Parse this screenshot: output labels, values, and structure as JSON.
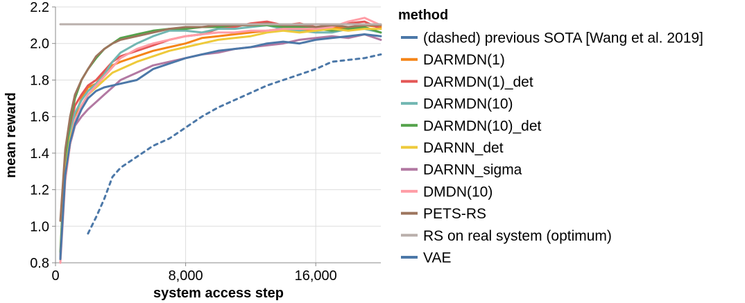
{
  "chart_data": {
    "type": "line",
    "xlabel": "system access step",
    "ylabel": "mean reward",
    "xlim": [
      0,
      20000
    ],
    "ylim": [
      0.8,
      2.2
    ],
    "xticks": [
      0,
      8000,
      16000
    ],
    "xtick_labels": [
      "0",
      "8,000",
      "16,000"
    ],
    "yticks": [
      0.8,
      1.0,
      1.2,
      1.4,
      1.6,
      1.8,
      2.0,
      2.2
    ],
    "ytick_labels": [
      "0.8",
      "1.0",
      "1.2",
      "1.4",
      "1.6",
      "1.8",
      "2.0",
      "2.2"
    ],
    "grid": true,
    "legend": {
      "title": "method",
      "placement": "right",
      "entries": [
        {
          "label": "(dashed) previous SOTA [Wang et al. 2019]",
          "color": "#4c78a8"
        },
        {
          "label": "DARMDN(1)",
          "color": "#f58518"
        },
        {
          "label": "DARMDN(1)_det",
          "color": "#e45756"
        },
        {
          "label": "DARMDN(10)",
          "color": "#72b7b2"
        },
        {
          "label": "DARMDN(10)_det",
          "color": "#54a24b"
        },
        {
          "label": "DARNN_det",
          "color": "#eeca3b"
        },
        {
          "label": "DARNN_sigma",
          "color": "#b279a2"
        },
        {
          "label": "DMDN(10)",
          "color": "#ff9da6"
        },
        {
          "label": "PETS-RS",
          "color": "#9d755d"
        },
        {
          "label": "RS on real system (optimum)",
          "color": "#bab0ac"
        },
        {
          "label": "VAE",
          "color": "#4c78a8"
        }
      ]
    },
    "series": [
      {
        "name": "(dashed) previous SOTA [Wang et al. 2019]",
        "color": "#4c78a8",
        "dashed": true,
        "x": [
          2000,
          2500,
          3000,
          3500,
          4000,
          5000,
          6000,
          7000,
          8000,
          9000,
          10000,
          11000,
          12000,
          13000,
          14000,
          15000,
          16000,
          17000,
          18000,
          19000,
          20000
        ],
        "y": [
          0.96,
          1.05,
          1.15,
          1.27,
          1.32,
          1.38,
          1.44,
          1.48,
          1.54,
          1.6,
          1.65,
          1.69,
          1.73,
          1.77,
          1.8,
          1.83,
          1.86,
          1.9,
          1.91,
          1.92,
          1.94
        ]
      },
      {
        "name": "DARMDN(1)",
        "color": "#f58518",
        "x": [
          300,
          600,
          900,
          1200,
          1600,
          2000,
          2500,
          3000,
          3500,
          4000,
          5000,
          6000,
          7000,
          8000,
          9000,
          10000,
          11000,
          12000,
          13000,
          14000,
          15000,
          16000,
          17000,
          18000,
          19000,
          20000
        ],
        "y": [
          0.83,
          1.3,
          1.48,
          1.6,
          1.7,
          1.76,
          1.78,
          1.84,
          1.88,
          1.9,
          1.93,
          1.96,
          1.98,
          2.0,
          2.03,
          2.04,
          2.05,
          2.06,
          2.07,
          2.08,
          2.07,
          2.08,
          2.09,
          2.08,
          2.1,
          2.09
        ]
      },
      {
        "name": "DARMDN(1)_det",
        "color": "#e45756",
        "x": [
          300,
          600,
          900,
          1200,
          1600,
          2000,
          2500,
          3000,
          3500,
          4000,
          5000,
          6000,
          7000,
          8000,
          9000,
          10000,
          11000,
          12000,
          13000,
          14000,
          15000,
          16000,
          17000,
          18000,
          19000,
          20000
        ],
        "y": [
          0.85,
          1.35,
          1.55,
          1.66,
          1.72,
          1.77,
          1.8,
          1.85,
          1.9,
          1.93,
          1.96,
          1.99,
          2.02,
          2.04,
          2.05,
          2.08,
          2.09,
          2.11,
          2.12,
          2.1,
          2.11,
          2.09,
          2.1,
          2.11,
          2.12,
          2.08
        ]
      },
      {
        "name": "DARMDN(10)",
        "color": "#72b7b2",
        "x": [
          300,
          600,
          900,
          1200,
          1600,
          2000,
          2500,
          3000,
          3500,
          4000,
          5000,
          6000,
          7000,
          8000,
          9000,
          10000,
          11000,
          12000,
          13000,
          14000,
          15000,
          16000,
          17000,
          18000,
          19000,
          20000
        ],
        "y": [
          0.84,
          1.32,
          1.5,
          1.62,
          1.69,
          1.74,
          1.78,
          1.83,
          1.9,
          1.95,
          2.0,
          2.04,
          2.07,
          2.07,
          2.06,
          2.08,
          2.08,
          2.09,
          2.1,
          2.08,
          2.07,
          2.06,
          2.06,
          2.08,
          2.08,
          2.06
        ]
      },
      {
        "name": "DARMDN(10)_det",
        "color": "#54a24b",
        "x": [
          300,
          600,
          900,
          1200,
          1600,
          2000,
          2500,
          3000,
          3500,
          4000,
          5000,
          6000,
          7000,
          8000,
          9000,
          10000,
          11000,
          12000,
          13000,
          14000,
          15000,
          16000,
          17000,
          18000,
          19000,
          20000
        ],
        "y": [
          0.86,
          1.38,
          1.57,
          1.7,
          1.8,
          1.86,
          1.92,
          1.97,
          2.0,
          2.03,
          2.05,
          2.07,
          2.08,
          2.08,
          2.09,
          2.09,
          2.1,
          2.1,
          2.1,
          2.09,
          2.09,
          2.08,
          2.07,
          2.08,
          2.09,
          2.06
        ]
      },
      {
        "name": "DARNN_det",
        "color": "#eeca3b",
        "x": [
          300,
          600,
          900,
          1200,
          1600,
          2000,
          2500,
          3000,
          3500,
          4000,
          5000,
          6000,
          7000,
          8000,
          9000,
          10000,
          11000,
          12000,
          13000,
          14000,
          15000,
          16000,
          17000,
          18000,
          19000,
          20000
        ],
        "y": [
          0.82,
          1.3,
          1.48,
          1.58,
          1.66,
          1.72,
          1.76,
          1.8,
          1.84,
          1.86,
          1.9,
          1.93,
          1.96,
          1.98,
          2.0,
          2.02,
          2.03,
          2.04,
          2.06,
          2.07,
          2.06,
          2.07,
          2.08,
          2.07,
          2.08,
          2.08
        ]
      },
      {
        "name": "DARNN_sigma",
        "color": "#b279a2",
        "x": [
          300,
          600,
          900,
          1200,
          1600,
          2000,
          2500,
          3000,
          3500,
          4000,
          5000,
          6000,
          7000,
          8000,
          9000,
          10000,
          11000,
          12000,
          13000,
          14000,
          15000,
          16000,
          17000,
          18000,
          19000,
          20000
        ],
        "y": [
          0.83,
          1.27,
          1.45,
          1.55,
          1.6,
          1.64,
          1.68,
          1.72,
          1.76,
          1.8,
          1.84,
          1.88,
          1.9,
          1.92,
          1.94,
          1.95,
          1.97,
          1.98,
          1.99,
          2.0,
          2.02,
          2.03,
          2.04,
          2.03,
          2.05,
          2.02
        ]
      },
      {
        "name": "DMDN(10)",
        "color": "#ff9da6",
        "x": [
          300,
          600,
          900,
          1200,
          1600,
          2000,
          2500,
          3000,
          3500,
          4000,
          5000,
          6000,
          7000,
          8000,
          9000,
          10000,
          11000,
          12000,
          13000,
          14000,
          15000,
          16000,
          17000,
          18000,
          19000,
          20000
        ],
        "y": [
          0.8,
          1.25,
          1.45,
          1.58,
          1.66,
          1.72,
          1.77,
          1.82,
          1.87,
          1.92,
          1.97,
          2.0,
          2.02,
          2.04,
          2.05,
          2.06,
          2.06,
          2.07,
          2.07,
          2.08,
          2.08,
          2.08,
          2.09,
          2.12,
          2.14,
          2.1
        ]
      },
      {
        "name": "PETS-RS",
        "color": "#9d755d",
        "x": [
          300,
          600,
          900,
          1200,
          1600,
          2000,
          2500,
          3000,
          3500,
          4000,
          5000,
          6000,
          7000,
          8000,
          9000,
          10000,
          11000,
          12000,
          13000,
          14000,
          15000,
          16000,
          17000,
          18000,
          19000,
          20000
        ],
        "y": [
          1.03,
          1.42,
          1.6,
          1.72,
          1.8,
          1.86,
          1.93,
          1.97,
          2.0,
          2.02,
          2.04,
          2.06,
          2.08,
          2.09,
          2.09,
          2.1,
          2.1,
          2.1,
          2.11,
          2.1,
          2.1,
          2.09,
          2.1,
          2.09,
          2.1,
          2.1
        ]
      },
      {
        "name": "RS on real system (optimum)",
        "color": "#bab0ac",
        "x": [
          300,
          20000
        ],
        "y": [
          2.105,
          2.105
        ]
      },
      {
        "name": "VAE",
        "color": "#4c78a8",
        "x": [
          300,
          600,
          900,
          1200,
          1600,
          2000,
          2500,
          3000,
          3500,
          4000,
          5000,
          6000,
          7000,
          8000,
          9000,
          10000,
          11000,
          12000,
          13000,
          14000,
          15000,
          16000,
          17000,
          18000,
          19000,
          20000
        ],
        "y": [
          0.82,
          1.28,
          1.46,
          1.56,
          1.64,
          1.7,
          1.74,
          1.76,
          1.77,
          1.78,
          1.8,
          1.86,
          1.89,
          1.92,
          1.94,
          1.96,
          1.97,
          1.98,
          2.0,
          2.01,
          2.0,
          2.02,
          2.03,
          2.04,
          2.05,
          2.04
        ]
      }
    ]
  }
}
